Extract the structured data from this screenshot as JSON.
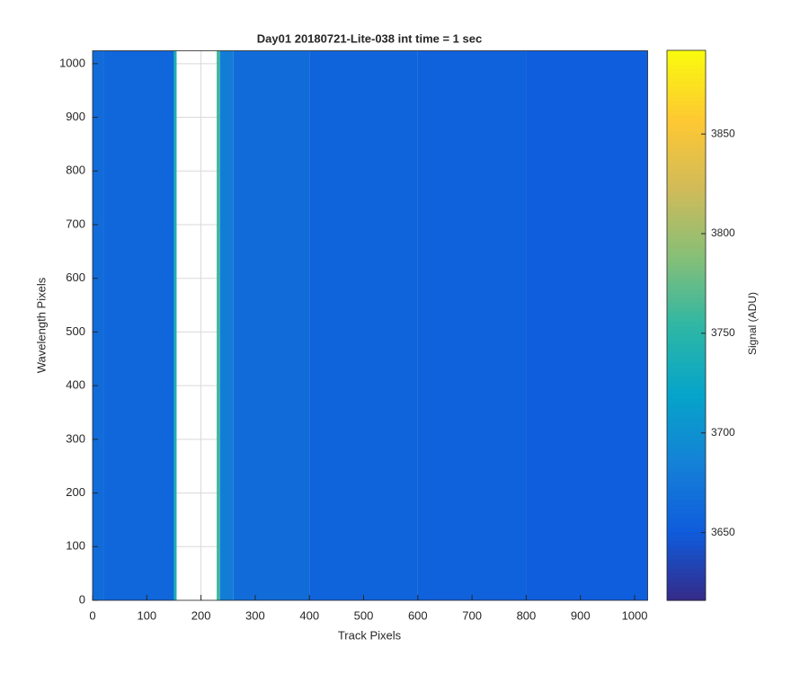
{
  "chart_data": {
    "type": "heatmap",
    "title": "Day01 20180721-Lite-038 int time = 1 sec",
    "xlabel": "Track Pixels",
    "ylabel": "Wavelength Pixels",
    "x_bins": [
      0,
      20,
      150,
      155,
      229,
      235,
      260,
      400,
      600,
      800,
      1024
    ],
    "values": [
      3665,
      3660,
      3740,
      null,
      3760,
      3680,
      3665,
      3658,
      3655,
      3652
    ],
    "xlim": [
      0,
      1024
    ],
    "ylim": [
      0,
      1024
    ],
    "xticks": [
      0,
      100,
      200,
      300,
      400,
      500,
      600,
      700,
      800,
      900,
      1000
    ],
    "yticks": [
      0,
      100,
      200,
      300,
      400,
      500,
      600,
      700,
      800,
      900,
      1000
    ],
    "grid": true,
    "colorbar": {
      "label": "Signal (ADU)",
      "clim": [
        3616,
        3892
      ],
      "ticks": [
        3650,
        3700,
        3750,
        3800,
        3850
      ]
    },
    "colormap": [
      "#352a87",
      "#0f5cdd",
      "#1481d6",
      "#06a4ca",
      "#2eb7a4",
      "#87bf77",
      "#d1bb59",
      "#fec832",
      "#f9fb0e"
    ]
  }
}
